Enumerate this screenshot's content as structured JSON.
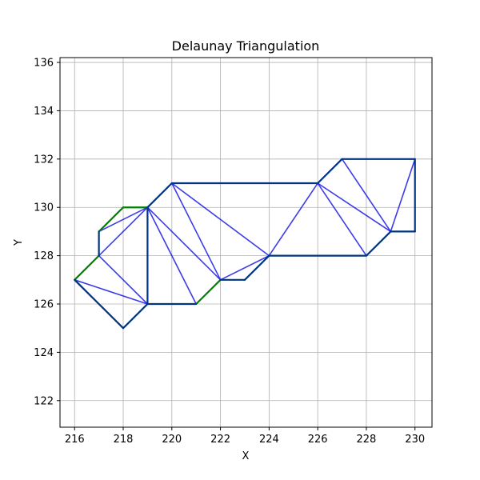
{
  "chart_data": {
    "type": "line",
    "title": "Delaunay Triangulation",
    "xlabel": "X",
    "ylabel": "Y",
    "xlim": [
      215.4,
      230.7
    ],
    "ylim": [
      120.9,
      136.2
    ],
    "xticks": [
      "216",
      "218",
      "220",
      "222",
      "224",
      "226",
      "228",
      "230"
    ],
    "yticks": [
      "122",
      "124",
      "126",
      "128",
      "130",
      "132",
      "134",
      "136"
    ],
    "grid": true,
    "series": [
      {
        "style": "interior-edges",
        "color": "#1a1ae6",
        "segments": [
          [
            [
              216,
              127
            ],
            [
              217,
              128
            ]
          ],
          [
            [
              216,
              127
            ],
            [
              219,
              126
            ]
          ],
          [
            [
              217,
              128
            ],
            [
              219,
              130
            ]
          ],
          [
            [
              217,
              128
            ],
            [
              219,
              126
            ]
          ],
          [
            [
              217,
              129
            ],
            [
              219,
              130
            ]
          ],
          [
            [
              219,
              130
            ],
            [
              219,
              126
            ]
          ],
          [
            [
              219,
              130
            ],
            [
              221,
              126
            ]
          ],
          [
            [
              219,
              130
            ],
            [
              222,
              127
            ]
          ],
          [
            [
              220,
              131
            ],
            [
              222,
              127
            ]
          ],
          [
            [
              220,
              131
            ],
            [
              224,
              128
            ]
          ],
          [
            [
              222,
              127
            ],
            [
              224,
              128
            ]
          ],
          [
            [
              224,
              128
            ],
            [
              226,
              131
            ]
          ],
          [
            [
              226,
              131
            ],
            [
              228,
              128
            ]
          ],
          [
            [
              226,
              131
            ],
            [
              229,
              129
            ]
          ],
          [
            [
              227,
              132
            ],
            [
              229,
              129
            ]
          ],
          [
            [
              229,
              129
            ],
            [
              230,
              132
            ]
          ],
          [
            [
              219,
              130
            ],
            [
              220,
              131
            ]
          ],
          [
            [
              220,
              131
            ],
            [
              226,
              131
            ]
          ],
          [
            [
              226,
              131
            ],
            [
              227,
              132
            ]
          ]
        ]
      },
      {
        "style": "green-edges",
        "color": "#008000",
        "segments": [
          [
            [
              216,
              127
            ],
            [
              217,
              128
            ]
          ],
          [
            [
              217,
              129
            ],
            [
              218,
              130
            ]
          ],
          [
            [
              218,
              130
            ],
            [
              219,
              130
            ]
          ],
          [
            [
              221,
              126
            ],
            [
              222,
              127
            ]
          ]
        ]
      },
      {
        "style": "boundary",
        "color": "#003380",
        "segments": [
          [
            [
              217,
              128
            ],
            [
              217,
              129
            ]
          ],
          [
            [
              216,
              127
            ],
            [
              218,
              125
            ]
          ],
          [
            [
              218,
              125
            ],
            [
              219,
              126
            ]
          ],
          [
            [
              219,
              126
            ],
            [
              221,
              126
            ]
          ],
          [
            [
              219,
              126
            ],
            [
              219,
              130
            ]
          ],
          [
            [
              219,
              130
            ],
            [
              220,
              131
            ]
          ],
          [
            [
              220,
              131
            ],
            [
              226,
              131
            ]
          ],
          [
            [
              222,
              127
            ],
            [
              223,
              127
            ]
          ],
          [
            [
              223,
              127
            ],
            [
              224,
              128
            ]
          ],
          [
            [
              224,
              128
            ],
            [
              228,
              128
            ]
          ],
          [
            [
              228,
              128
            ],
            [
              229,
              129
            ]
          ],
          [
            [
              229,
              129
            ],
            [
              230,
              129
            ]
          ],
          [
            [
              230,
              129
            ],
            [
              230,
              132
            ]
          ],
          [
            [
              230,
              132
            ],
            [
              227,
              132
            ]
          ],
          [
            [
              227,
              132
            ],
            [
              226,
              131
            ]
          ]
        ]
      }
    ]
  }
}
